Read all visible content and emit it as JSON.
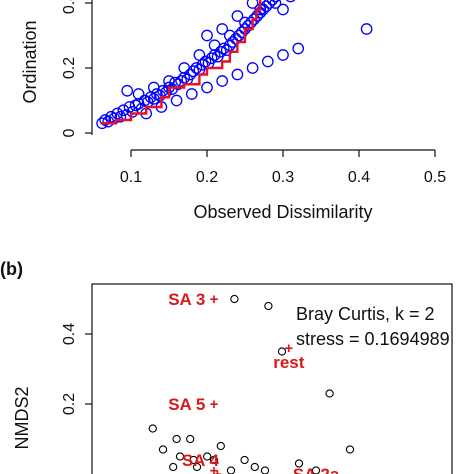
{
  "chart_data": [
    {
      "panel": "a",
      "type": "scatter",
      "title": "",
      "xlabel": "Observed Dissimilarity",
      "ylabel": "Ordination",
      "xlim": [
        0.05,
        0.5
      ],
      "ylim": [
        0,
        0.5
      ],
      "x_ticks": [
        "0.1",
        "0.2",
        "0.3",
        "0.4",
        "0.5"
      ],
      "y_ticks": [
        "0",
        "0.2",
        "0.4"
      ],
      "series": [
        {
          "kind": "points",
          "color": "#0000ff",
          "x": [
            0.062,
            0.066,
            0.07,
            0.074,
            0.078,
            0.082,
            0.086,
            0.09,
            0.094,
            0.098,
            0.102,
            0.106,
            0.11,
            0.114,
            0.118,
            0.122,
            0.126,
            0.13,
            0.134,
            0.138,
            0.142,
            0.146,
            0.15,
            0.154,
            0.158,
            0.162,
            0.166,
            0.17,
            0.174,
            0.178,
            0.182,
            0.186,
            0.19,
            0.194,
            0.198,
            0.202,
            0.206,
            0.21,
            0.214,
            0.218,
            0.222,
            0.226,
            0.23,
            0.234,
            0.238,
            0.242,
            0.246,
            0.25,
            0.254,
            0.258,
            0.262,
            0.266,
            0.27,
            0.274,
            0.278,
            0.282,
            0.286,
            0.29,
            0.294,
            0.298,
            0.302,
            0.306,
            0.31,
            0.314,
            0.318,
            0.322,
            0.326,
            0.33,
            0.334,
            0.338,
            0.342,
            0.346,
            0.35,
            0.355,
            0.36,
            0.365,
            0.41,
            0.095,
            0.12,
            0.14,
            0.16,
            0.18,
            0.2,
            0.22,
            0.24,
            0.26,
            0.28,
            0.3,
            0.32,
            0.11,
            0.13,
            0.15,
            0.17,
            0.19,
            0.21,
            0.23,
            0.25,
            0.27,
            0.29,
            0.31,
            0.2,
            0.22,
            0.24,
            0.26,
            0.28,
            0.3
          ],
          "y": [
            0.03,
            0.04,
            0.035,
            0.05,
            0.045,
            0.06,
            0.05,
            0.07,
            0.055,
            0.08,
            0.065,
            0.085,
            0.09,
            0.075,
            0.1,
            0.095,
            0.11,
            0.105,
            0.12,
            0.115,
            0.13,
            0.125,
            0.14,
            0.135,
            0.155,
            0.15,
            0.16,
            0.17,
            0.165,
            0.18,
            0.19,
            0.2,
            0.195,
            0.21,
            0.22,
            0.215,
            0.23,
            0.24,
            0.235,
            0.25,
            0.26,
            0.255,
            0.27,
            0.28,
            0.29,
            0.3,
            0.31,
            0.32,
            0.33,
            0.34,
            0.35,
            0.36,
            0.37,
            0.38,
            0.39,
            0.4,
            0.41,
            0.42,
            0.43,
            0.44,
            0.45,
            0.46,
            0.47,
            0.48,
            0.49,
            0.5,
            0.49,
            0.5,
            0.48,
            0.5,
            0.49,
            0.5,
            0.47,
            0.49,
            0.5,
            0.48,
            0.32,
            0.13,
            0.06,
            0.08,
            0.1,
            0.12,
            0.14,
            0.16,
            0.18,
            0.2,
            0.22,
            0.24,
            0.26,
            0.12,
            0.14,
            0.16,
            0.2,
            0.24,
            0.27,
            0.3,
            0.34,
            0.38,
            0.4,
            0.42,
            0.3,
            0.32,
            0.36,
            0.4,
            0.44,
            0.38
          ]
        },
        {
          "kind": "step-line",
          "color": "#e8102a",
          "x": [
            0.06,
            0.08,
            0.1,
            0.12,
            0.14,
            0.15,
            0.17,
            0.19,
            0.2,
            0.22,
            0.23,
            0.24,
            0.25,
            0.26,
            0.265,
            0.27,
            0.27
          ],
          "y": [
            0.03,
            0.04,
            0.06,
            0.08,
            0.11,
            0.14,
            0.15,
            0.18,
            0.2,
            0.22,
            0.25,
            0.28,
            0.32,
            0.35,
            0.38,
            0.42,
            0.5
          ]
        }
      ]
    },
    {
      "panel": "b",
      "panel_label": "(b)",
      "type": "scatter",
      "title": "",
      "xlabel": "",
      "ylabel": "NMDS2",
      "ylim": [
        -0.05,
        0.55
      ],
      "y_ticks": [
        "0.2",
        "0.4"
      ],
      "legend_text": [
        "Bray Curtis, k = 2",
        "stress = 0.1694989"
      ],
      "legend_position": "top-right",
      "sites": {
        "kind": "open-circles",
        "color": "#000000",
        "points": [
          [
            0.36,
            0.5
          ],
          [
            0.46,
            0.48
          ],
          [
            0.5,
            0.35
          ],
          [
            0.64,
            0.23
          ],
          [
            0.12,
            0.13
          ],
          [
            0.19,
            0.1
          ],
          [
            0.23,
            0.1
          ],
          [
            0.32,
            0.08
          ],
          [
            0.15,
            0.07
          ],
          [
            0.2,
            0.05
          ],
          [
            0.24,
            0.04
          ],
          [
            0.28,
            0.05
          ],
          [
            0.3,
            0.04
          ],
          [
            0.18,
            0.02
          ],
          [
            0.25,
            0.02
          ],
          [
            0.39,
            0.04
          ],
          [
            0.42,
            0.02
          ],
          [
            0.55,
            0.03
          ],
          [
            0.6,
            0.01
          ],
          [
            0.7,
            0.07
          ],
          [
            0.75,
            0.0
          ],
          [
            0.17,
            0.0
          ],
          [
            0.22,
            0.0
          ],
          [
            0.35,
            0.01
          ],
          [
            0.45,
            0.01
          ]
        ]
      },
      "labels": [
        {
          "text": "SA 3",
          "x": 0.22,
          "y": 0.5
        },
        {
          "text": "rest",
          "x": 0.52,
          "y": 0.32
        },
        {
          "text": "SA 5",
          "x": 0.22,
          "y": 0.2
        },
        {
          "text": "SA 4",
          "x": 0.26,
          "y": 0.04
        },
        {
          "text": "SA 2a",
          "x": 0.6,
          "y": 0.0
        }
      ],
      "centroids": [
        [
          0.3,
          0.5
        ],
        [
          0.52,
          0.36
        ],
        [
          0.3,
          0.2
        ],
        [
          0.3,
          0.01
        ],
        [
          0.31,
          0.0
        ]
      ]
    }
  ]
}
